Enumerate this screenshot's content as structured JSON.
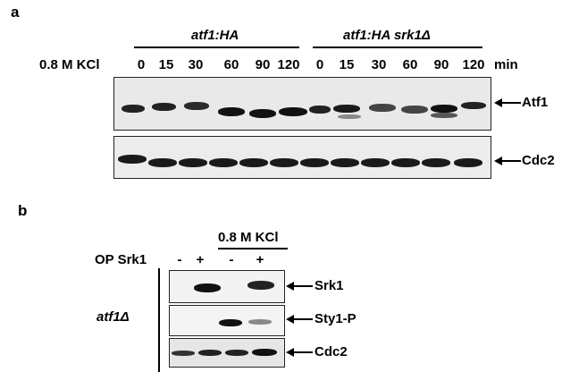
{
  "panel_a": {
    "letter": "a",
    "group1_label": "atf1:HA",
    "group2_label": "atf1:HA srk1Δ",
    "condition_label": "0.8 M KCl",
    "time_points": [
      "0",
      "15",
      "30",
      "60",
      "90",
      "120",
      "0",
      "15",
      "30",
      "60",
      "90",
      "120"
    ],
    "time_unit": "min",
    "blot1_label": "Atf1",
    "blot2_label": "Cdc2"
  },
  "panel_b": {
    "letter": "b",
    "condition_label": "0.8 M KCl",
    "row_label": "OP Srk1",
    "lane_signs": [
      "-",
      "+",
      "-",
      "+"
    ],
    "strain_label": "atf1Δ",
    "blot1_label": "Srk1",
    "blot2_label": "Sty1-P",
    "blot3_label": "Cdc2"
  }
}
